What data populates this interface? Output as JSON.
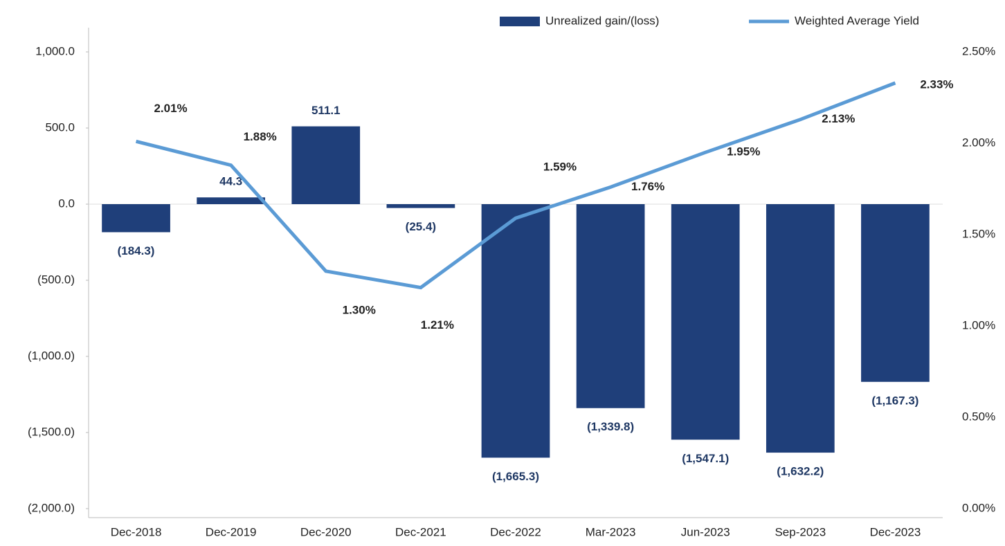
{
  "chart_data": {
    "type": "bar_line",
    "categories": [
      "Dec-2018",
      "Dec-2019",
      "Dec-2020",
      "Dec-2021",
      "Dec-2022",
      "Mar-2023",
      "Jun-2023",
      "Sep-2023",
      "Dec-2023"
    ],
    "series": [
      {
        "name": "Unrealized gain/(loss)",
        "type": "bar",
        "color": "#1f3f7a",
        "values": [
          -184.3,
          44.3,
          511.1,
          -25.4,
          -1665.3,
          -1339.8,
          -1547.1,
          -1632.2,
          -1167.3
        ],
        "value_labels": [
          "(184.3)",
          "44.3",
          "511.1",
          "(25.4)",
          "(1,665.3)",
          "(1,339.8)",
          "(1,547.1)",
          "(1,632.2)",
          "(1,167.3)"
        ]
      },
      {
        "name": "Weighted Average Yield",
        "type": "line",
        "axis": "y2",
        "color": "#5b9bd5",
        "values": [
          2.01,
          1.88,
          1.3,
          1.21,
          1.59,
          1.76,
          1.95,
          2.13,
          2.33
        ],
        "value_labels": [
          "2.01%",
          "1.88%",
          "1.30%",
          "1.21%",
          "1.59%",
          "1.76%",
          "1.95%",
          "2.13%",
          "2.33%"
        ]
      }
    ],
    "ylim": [
      -2000,
      1000
    ],
    "yticks": [
      {
        "value": 1000,
        "label": "1,000.0"
      },
      {
        "value": 500,
        "label": "500.0"
      },
      {
        "value": 0,
        "label": "0.0"
      },
      {
        "value": -500,
        "label": "(500.0)"
      },
      {
        "value": -1000,
        "label": "(1,000.0)"
      },
      {
        "value": -1500,
        "label": "(1,500.0)"
      },
      {
        "value": -2000,
        "label": "(2,000.0)"
      }
    ],
    "y2lim": [
      0,
      2.5
    ],
    "y2ticks": [
      {
        "value": 2.5,
        "label": "2.50%"
      },
      {
        "value": 2.0,
        "label": "2.00%"
      },
      {
        "value": 1.5,
        "label": "1.50%"
      },
      {
        "value": 1.0,
        "label": "1.00%"
      },
      {
        "value": 0.5,
        "label": "0.50%"
      },
      {
        "value": 0,
        "label": "0.00%"
      }
    ],
    "legend": "top"
  }
}
